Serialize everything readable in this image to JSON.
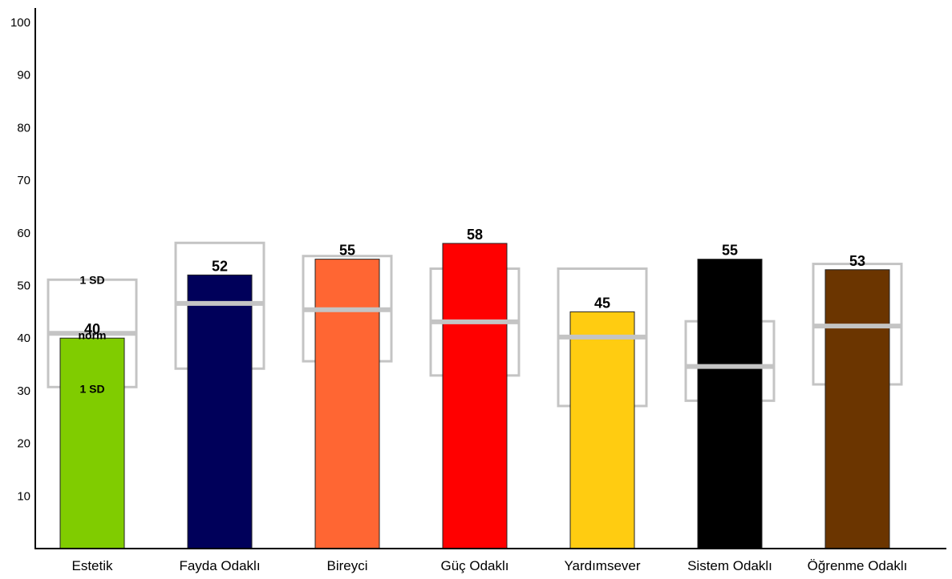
{
  "chart_data": {
    "type": "bar",
    "title": "",
    "xlabel": "",
    "ylabel": "",
    "ylim": [
      0,
      100
    ],
    "yticks": [
      10,
      20,
      30,
      40,
      50,
      60,
      70,
      80,
      90,
      100
    ],
    "grid": false,
    "categories": [
      "Estetik",
      "Fayda Odaklı",
      "Bireyci",
      "Güç Odaklı",
      "Yardımsever",
      "Sistem Odaklı",
      "Öğrenme Odaklı"
    ],
    "values": [
      40,
      52,
      55,
      58,
      45,
      55,
      53
    ],
    "colors": [
      "#80cc00",
      "#00005a",
      "#ff6633",
      "#ff0000",
      "#ffcc11",
      "#000000",
      "#6b3500"
    ],
    "norm_bands": [
      {
        "norm": 40.9,
        "sd_high": 51.1,
        "sd_low": 30.7
      },
      {
        "norm": 46.6,
        "sd_high": 58.1,
        "sd_low": 34.2
      },
      {
        "norm": 45.4,
        "sd_high": 55.6,
        "sd_low": 35.6
      },
      {
        "norm": 43.1,
        "sd_high": 53.2,
        "sd_low": 32.9
      },
      {
        "norm": 40.2,
        "sd_high": 53.2,
        "sd_low": 27.1
      },
      {
        "norm": 34.6,
        "sd_high": 43.2,
        "sd_low": 28.1
      },
      {
        "norm": 42.3,
        "sd_high": 54.1,
        "sd_low": 31.2
      }
    ],
    "annotations": {
      "sd_high": "1 SD",
      "norm": "norm",
      "sd_low": "1 SD"
    }
  },
  "colors": {
    "band": "#c4c4c4",
    "axis": "#000000"
  }
}
